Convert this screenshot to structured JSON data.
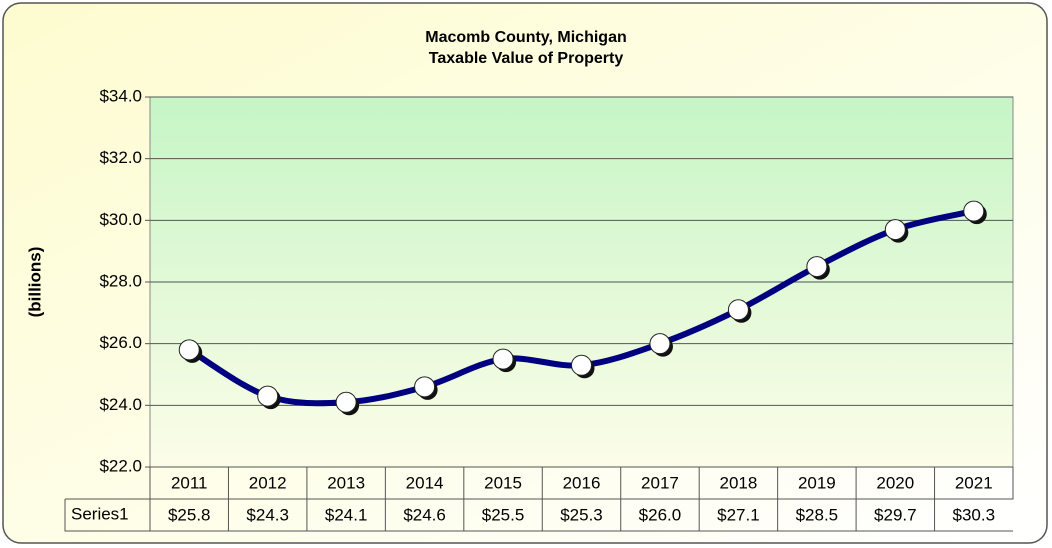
{
  "chart_data": {
    "type": "line",
    "title": "Macomb County, Michigan",
    "subtitle": "Taxable Value of Property",
    "y_label": "(billions)",
    "categories": [
      "2011",
      "2012",
      "2013",
      "2014",
      "2015",
      "2016",
      "2017",
      "2018",
      "2019",
      "2020",
      "2021"
    ],
    "series": [
      {
        "name": "Series1",
        "color": "#000080",
        "values": [
          25.8,
          24.3,
          24.1,
          24.6,
          25.5,
          25.3,
          26.0,
          27.1,
          28.5,
          29.7,
          30.3
        ],
        "value_labels": [
          "$25.8",
          "$24.3",
          "$24.1",
          "$24.6",
          "$25.5",
          "$25.3",
          "$26.0",
          "$27.1",
          "$28.5",
          "$29.7",
          "$30.3"
        ]
      }
    ],
    "ylim": [
      22,
      34
    ],
    "yticks": [
      {
        "value": 22,
        "label": "$22.0"
      },
      {
        "value": 24,
        "label": "$24.0"
      },
      {
        "value": 26,
        "label": "$26.0"
      },
      {
        "value": 28,
        "label": "$28.0"
      },
      {
        "value": 30,
        "label": "$30.0"
      },
      {
        "value": 32,
        "label": "$32.0"
      },
      {
        "value": 34,
        "label": "$34.0"
      }
    ],
    "grid": true
  }
}
